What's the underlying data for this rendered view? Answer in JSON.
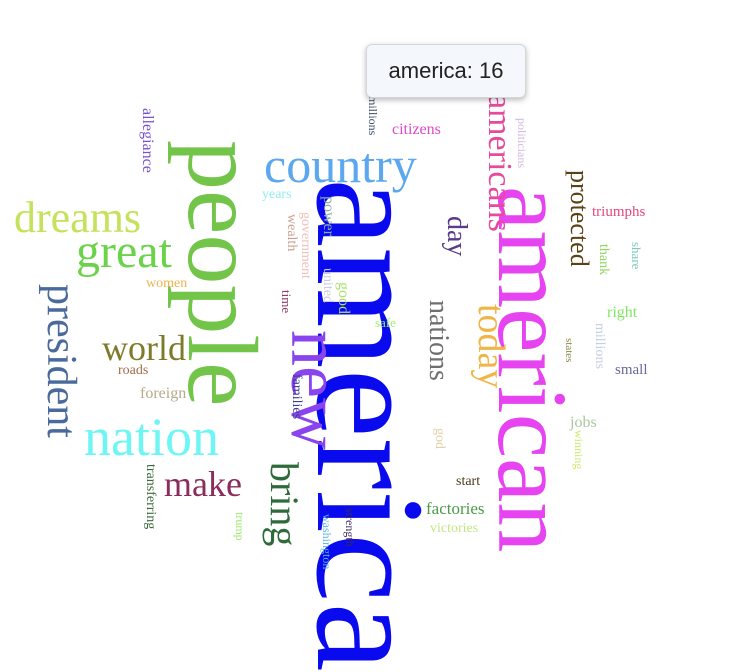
{
  "tooltip": {
    "word": "america",
    "sep": ": ",
    "value": "16"
  },
  "chart_data": {
    "type": "wordcloud",
    "words": [
      {
        "text": "america",
        "value": 16,
        "color": "#0a0aee"
      },
      {
        "text": "people",
        "color": "#72c549"
      },
      {
        "text": "american",
        "color": "#e644f0"
      },
      {
        "text": "nation",
        "color": "#6ef6f4"
      },
      {
        "text": "country",
        "color": "#5ca8ef"
      },
      {
        "text": "new",
        "color": "#8a44ee"
      },
      {
        "text": "dreams",
        "color": "#c4e25b"
      },
      {
        "text": "great",
        "color": "#6ad34a"
      },
      {
        "text": "president",
        "color": "#4a6a9c"
      },
      {
        "text": "americans",
        "color": "#e64a9c"
      },
      {
        "text": "today",
        "color": "#efb545"
      },
      {
        "text": "bring",
        "color": "#2e6a3a"
      },
      {
        "text": "make",
        "color": "#8a2c5c"
      },
      {
        "text": "world",
        "color": "#7e7a2a"
      },
      {
        "text": "protected",
        "color": "#5a4215"
      },
      {
        "text": "nations",
        "color": "#6f6f6f"
      },
      {
        "text": "day",
        "color": "#5a3a8a"
      },
      {
        "text": "citizens",
        "color": "#de48c9"
      },
      {
        "text": "millions",
        "color": "#3a4a6a"
      },
      {
        "text": "politicians",
        "color": "#d1b6e2"
      },
      {
        "text": "allegiance",
        "color": "#7a50cf"
      },
      {
        "text": "years",
        "color": "#93eef0"
      },
      {
        "text": "wealth",
        "color": "#c9a08f"
      },
      {
        "text": "government",
        "color": "#efc1b8"
      },
      {
        "text": "power",
        "color": "#8ab0a6"
      },
      {
        "text": "united",
        "color": "#c8cbe3"
      },
      {
        "text": "good",
        "color": "#a9e16a"
      },
      {
        "text": "safe",
        "color": "#a0f06b"
      },
      {
        "text": "women",
        "color": "#f0b24a"
      },
      {
        "text": "time",
        "color": "#8e3a6b"
      },
      {
        "text": "roads",
        "color": "#a06a4a"
      },
      {
        "text": "foreign",
        "color": "#b5aa8a"
      },
      {
        "text": "families",
        "color": "#3d3f8e"
      },
      {
        "text": "god",
        "color": "#e2d1a8"
      },
      {
        "text": "triumphs",
        "color": "#e24a7a"
      },
      {
        "text": "share",
        "color": "#7ec8c1"
      },
      {
        "text": "thank",
        "color": "#8ed65d"
      },
      {
        "text": "right",
        "color": "#7fe860"
      },
      {
        "text": "states",
        "color": "#8a8a4a"
      },
      {
        "text": "millions",
        "color": "#c4cfe2"
      },
      {
        "text": "small",
        "color": "#6a6a9a"
      },
      {
        "text": "jobs",
        "color": "#a9c9a1"
      },
      {
        "text": "winning",
        "color": "#c9ea69"
      },
      {
        "text": "start",
        "color": "#4a3a1a"
      },
      {
        "text": "factories",
        "color": "#4a9a4a"
      },
      {
        "text": "victories",
        "color": "#c3e686"
      },
      {
        "text": "transferring",
        "color": "#3a6a3a"
      },
      {
        "text": "trump",
        "color": "#9ce86a"
      },
      {
        "text": "washington",
        "color": "#5ab0e6"
      },
      {
        "text": "strength",
        "color": "#3a2a5a"
      }
    ]
  }
}
